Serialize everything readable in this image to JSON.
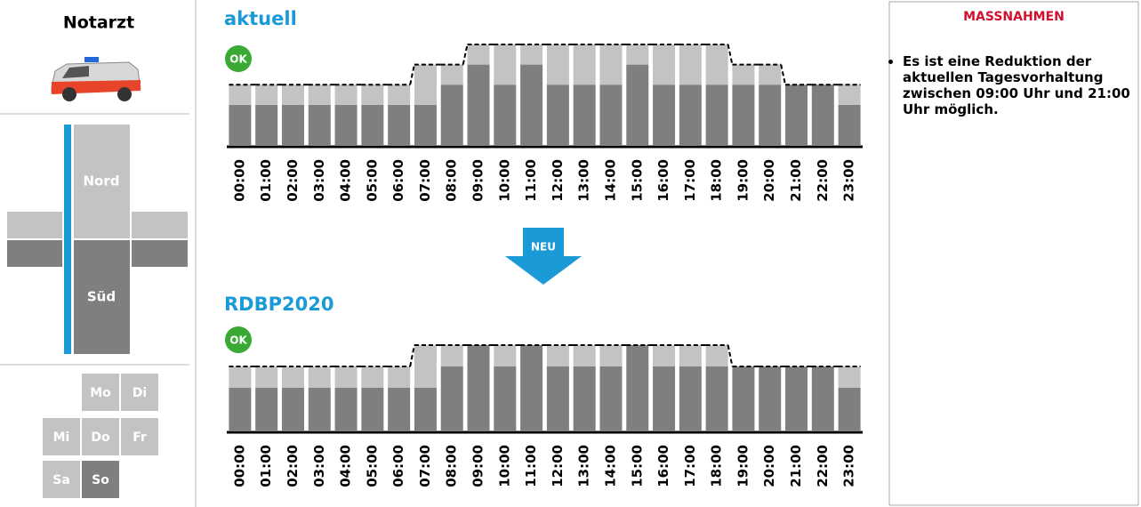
{
  "sidebar": {
    "title": "Notarzt",
    "regions": [
      "Nord",
      "Süd"
    ],
    "days": [
      "Mo",
      "Di",
      "Mi",
      "Do",
      "Fr",
      "Sa",
      "So"
    ],
    "active_day": 6
  },
  "chart_data": [
    {
      "type": "bar",
      "stacked": true,
      "title": "aktuell",
      "badge": "OK",
      "categories": [
        "00:00",
        "01:00",
        "02:00",
        "03:00",
        "04:00",
        "05:00",
        "06:00",
        "07:00",
        "08:00",
        "09:00",
        "10:00",
        "11:00",
        "12:00",
        "13:00",
        "14:00",
        "15:00",
        "16:00",
        "17:00",
        "18:00",
        "19:00",
        "20:00",
        "21:00",
        "22:00",
        "23:00"
      ],
      "series": [
        {
          "color": "#7f7f7f",
          "values": [
            2,
            2,
            2,
            2,
            2,
            2,
            2,
            2,
            3,
            4,
            3,
            4,
            3,
            3,
            3,
            4,
            3,
            3,
            3,
            3,
            3,
            3,
            3,
            2
          ]
        },
        {
          "color": "#c3c3c3",
          "values": [
            1,
            1,
            1,
            1,
            1,
            1,
            1,
            2,
            1,
            1,
            2,
            1,
            2,
            2,
            2,
            1,
            2,
            2,
            2,
            1,
            1,
            0,
            0,
            1
          ]
        }
      ],
      "line": {
        "color": "#000000",
        "values": [
          3,
          3,
          3,
          3,
          3,
          3,
          3,
          4,
          4,
          5,
          5,
          5,
          5,
          5,
          5,
          5,
          5,
          5,
          5,
          4,
          4,
          3,
          3,
          3
        ]
      },
      "ylim": [
        0,
        5
      ]
    },
    {
      "type": "bar",
      "stacked": true,
      "title": "RDBP2020",
      "badge": "OK",
      "categories": [
        "00:00",
        "01:00",
        "02:00",
        "03:00",
        "04:00",
        "05:00",
        "06:00",
        "07:00",
        "08:00",
        "09:00",
        "10:00",
        "11:00",
        "12:00",
        "13:00",
        "14:00",
        "15:00",
        "16:00",
        "17:00",
        "18:00",
        "19:00",
        "20:00",
        "21:00",
        "22:00",
        "23:00"
      ],
      "series": [
        {
          "color": "#7f7f7f",
          "values": [
            2,
            2,
            2,
            2,
            2,
            2,
            2,
            2,
            3,
            4,
            3,
            4,
            3,
            3,
            3,
            4,
            3,
            3,
            3,
            3,
            3,
            3,
            3,
            2
          ]
        },
        {
          "color": "#c3c3c3",
          "values": [
            1,
            1,
            1,
            1,
            1,
            1,
            1,
            2,
            1,
            0,
            1,
            0,
            1,
            1,
            1,
            0,
            1,
            1,
            1,
            0,
            0,
            0,
            0,
            1
          ]
        }
      ],
      "line": {
        "color": "#000000",
        "values": [
          3,
          3,
          3,
          3,
          3,
          3,
          3,
          4,
          4,
          4,
          4,
          4,
          4,
          4,
          4,
          4,
          4,
          4,
          4,
          3,
          3,
          3,
          3,
          3
        ]
      },
      "ylim": [
        0,
        4
      ]
    }
  ],
  "arrow_label": "NEU",
  "measures": {
    "title": "MASSNAHMEN",
    "items": [
      "Es ist eine Reduktion der aktuellen Tagesvorhaltung zwischen 09:00 Uhr und 21:00 Uhr möglich."
    ]
  }
}
